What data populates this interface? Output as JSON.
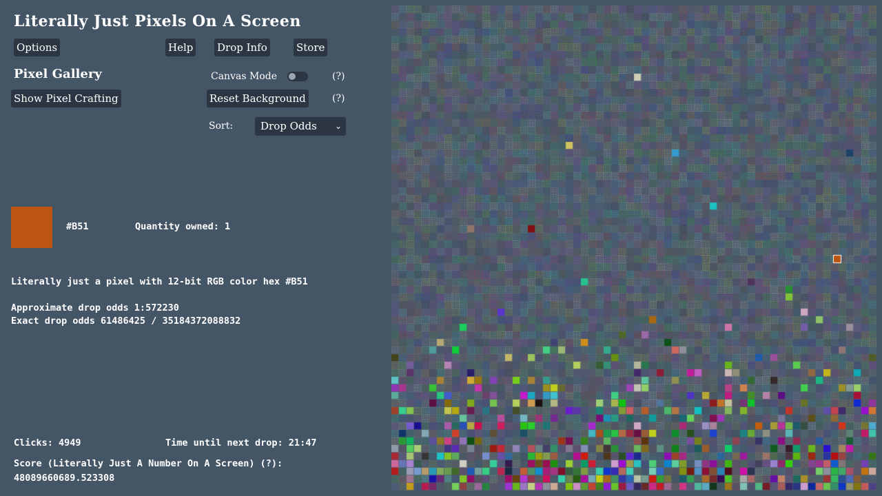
{
  "app": {
    "title": "Literally Just Pixels On A Screen"
  },
  "nav": {
    "options_label": "Options",
    "help_label": "Help",
    "drop_info_label": "Drop Info",
    "store_label": "Store"
  },
  "gallery": {
    "title": "Pixel Gallery",
    "show_crafting_label": "Show Pixel Crafting",
    "canvas_mode_label": "Canvas Mode",
    "canvas_mode_on": false,
    "canvas_mode_help": "(?)",
    "reset_background_label": "Reset Background",
    "reset_background_help": "(?)",
    "sort_label": "Sort:",
    "sort_value": "Drop Odds"
  },
  "selected_pixel": {
    "hex": "#B51",
    "color": "#bb5511",
    "quantity_label": "Quantity owned: 1",
    "description": "Literally just a pixel with 12-bit RGB color hex #B51",
    "approx_odds": "Approximate drop odds 1:572230",
    "exact_odds": "Exact drop odds 61486425 / 35184372088832"
  },
  "stats": {
    "clicks": "Clicks: 4949",
    "next_drop": "Time until next drop: 21:47",
    "score_label": "Score (Literally Just A Number On A Screen) (?):",
    "score_value": "48089660689.523308"
  },
  "colors": {
    "background": "#445566",
    "button_bg": "#2b3642",
    "highlight_border": "#ffffff"
  }
}
